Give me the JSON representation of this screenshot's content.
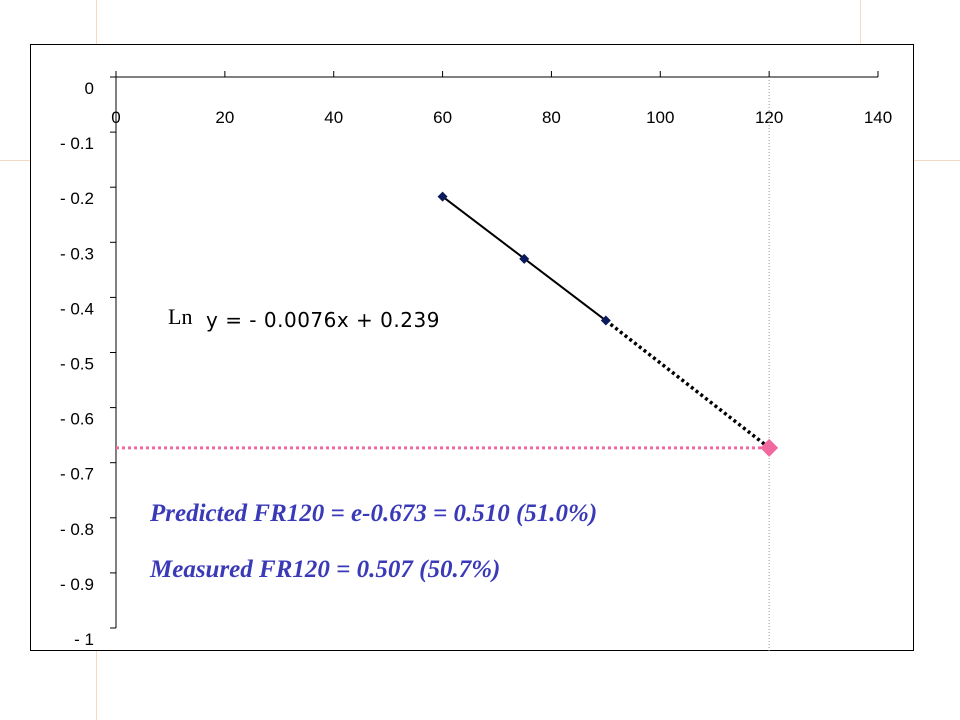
{
  "chart_data": {
    "type": "scatter",
    "xlim": [
      0,
      140
    ],
    "ylim": [
      -1,
      0
    ],
    "x_ticks": [
      "0",
      "20",
      "40",
      "60",
      "80",
      "100",
      "120",
      "140"
    ],
    "y_ticks": [
      "0",
      "- 0.1",
      "- 0.2",
      "- 0.3",
      "- 0.4",
      "- 0.5",
      "- 0.6",
      "- 0.7",
      "- 0.8",
      "- 0.9",
      "- 1"
    ],
    "x_tick_values": [
      0,
      20,
      40,
      60,
      80,
      100,
      120,
      140
    ],
    "y_tick_values": [
      0,
      -0.1,
      -0.2,
      -0.3,
      -0.4,
      -0.5,
      -0.6,
      -0.7,
      -0.8,
      -0.9,
      -1
    ],
    "x_axis_position": "top",
    "grid": false,
    "series": [
      {
        "x": [
          60,
          75,
          90
        ],
        "y": [
          -0.217,
          -0.33,
          -0.442
        ],
        "marker": "diamond",
        "color": "#0a1a5c"
      }
    ],
    "trendline": {
      "x": [
        60,
        90
      ],
      "y": [
        -0.217,
        -0.442
      ],
      "style": "solid",
      "color": "#000000"
    },
    "extrapolation": {
      "x": [
        90,
        120
      ],
      "y": [
        -0.442,
        -0.673
      ],
      "style": "dotted",
      "color": "#000000"
    },
    "predicted_point": {
      "x": 120,
      "y": -0.673,
      "marker": "diamond",
      "color": "#f06aa0"
    },
    "horizontal_guide": {
      "y": -0.673,
      "x_from": 0,
      "x_to": 120,
      "style": "dotted",
      "color": "#f06aa0"
    },
    "vertical_guide": {
      "x": 120,
      "style": "dotted",
      "color": "#999999"
    },
    "equation": {
      "prefix": "Ln",
      "text": "y = - 0.0076x + 0.239"
    },
    "annotations": [
      "Predicted FR120 = e-0.673 = 0.510 (51.0%)",
      "Measured FR120 = 0.507 (50.7%)"
    ]
  }
}
